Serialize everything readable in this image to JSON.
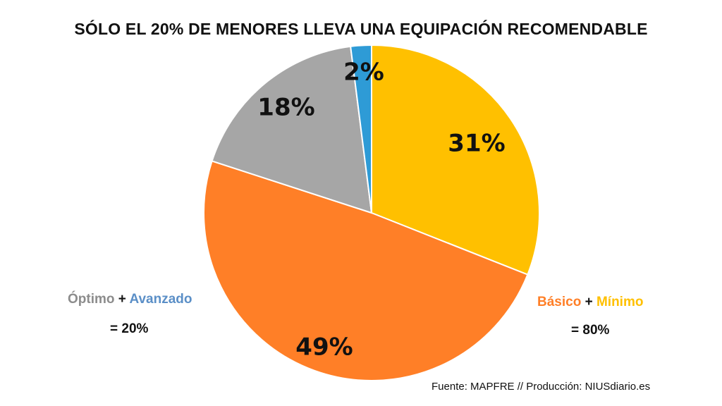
{
  "chart_data": {
    "type": "pie",
    "title": "SÓLO EL 20% DE MENORES LLEVA UNA EQUIPACIÓN RECOMENDABLE",
    "slices": [
      {
        "name": "Mínimo",
        "value": 31,
        "label": "31%",
        "color": "#FFC000"
      },
      {
        "name": "Básico",
        "value": 49,
        "label": "49%",
        "color": "#FF7F27"
      },
      {
        "name": "Óptimo",
        "value": 18,
        "label": "18%",
        "color": "#A6A6A6"
      },
      {
        "name": "Avanzado",
        "value": 2,
        "label": "2%",
        "color": "#2E9BD6"
      }
    ],
    "start_angle_deg": 0,
    "direction": "clockwise"
  },
  "annotations": {
    "left": {
      "part1": "Óptimo",
      "plus": " + ",
      "part2": "Avanzado",
      "total": "= 20%",
      "color1": "#8C8C8C",
      "color2": "#5B8FC7"
    },
    "right": {
      "part1": "Básico",
      "plus": " + ",
      "part2": "Mínimo",
      "total": "= 80%",
      "color1": "#FF7F27",
      "color2": "#FFC000"
    }
  },
  "source": "Fuente: MAPFRE // Producción: NIUSdiario.es"
}
